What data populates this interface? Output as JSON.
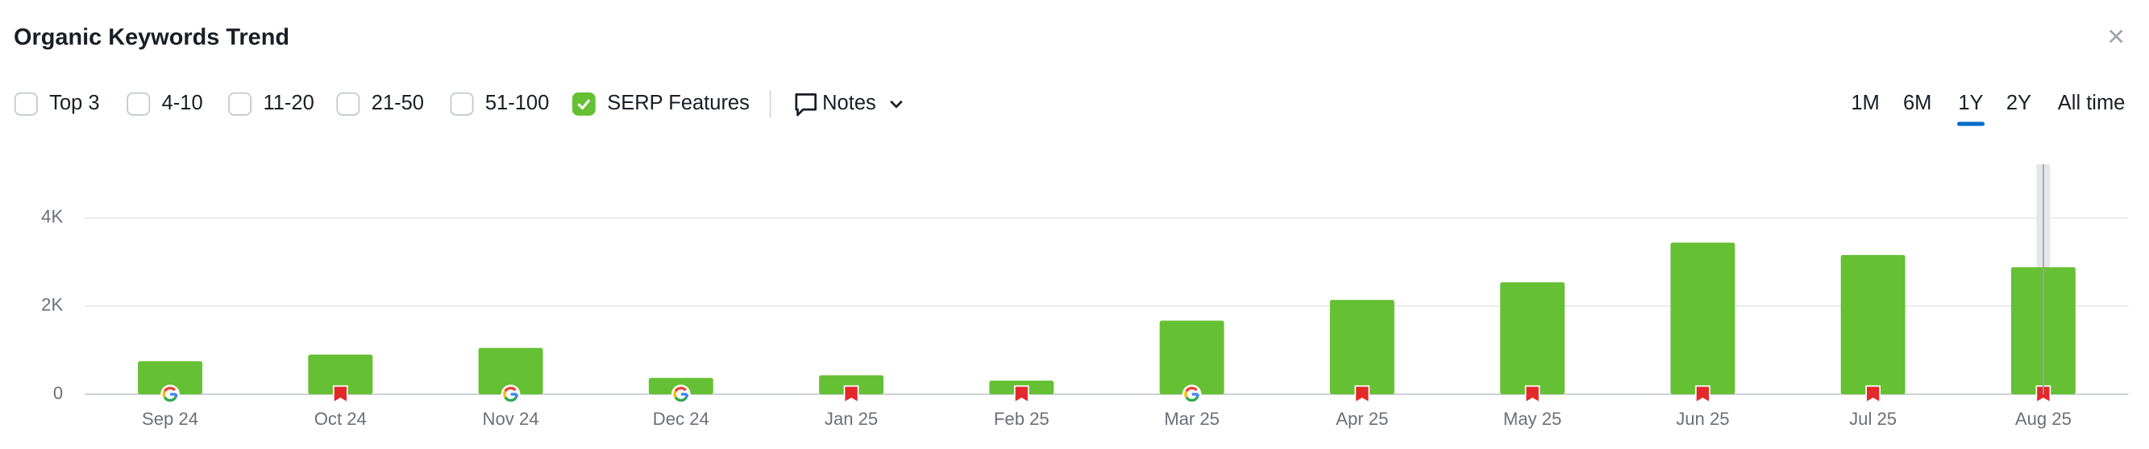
{
  "header": {
    "title": "Organic Keywords Trend",
    "close": "×"
  },
  "controls": {
    "filters": [
      {
        "label": "Top 3",
        "checked": false
      },
      {
        "label": "4-10",
        "checked": false
      },
      {
        "label": "11-20",
        "checked": false
      },
      {
        "label": "21-50",
        "checked": false
      },
      {
        "label": "51-100",
        "checked": false
      },
      {
        "label": "SERP Features",
        "checked": true
      }
    ],
    "notes": "Notes",
    "ranges": [
      {
        "label": "1M",
        "selected": false
      },
      {
        "label": "6M",
        "selected": false
      },
      {
        "label": "1Y",
        "selected": true
      },
      {
        "label": "2Y",
        "selected": false
      },
      {
        "label": "All time",
        "selected": false
      }
    ]
  },
  "chart_data": {
    "type": "bar",
    "categories": [
      "Sep 24",
      "Oct 24",
      "Nov 24",
      "Dec 24",
      "Jan 25",
      "Feb 25",
      "Mar 25",
      "Apr 25",
      "May 25",
      "Jun 25",
      "Jul 25",
      "Aug 25"
    ],
    "values": [
      750,
      900,
      1050,
      370,
      430,
      310,
      1670,
      2140,
      2540,
      3440,
      3160,
      2880
    ],
    "color": "#66c033",
    "ylim": [
      0,
      5000
    ],
    "yticks": [
      0,
      {
        "value": 2000,
        "label": "2K"
      },
      {
        "value": 4000,
        "label": "4K"
      }
    ],
    "grid": true
  }
}
